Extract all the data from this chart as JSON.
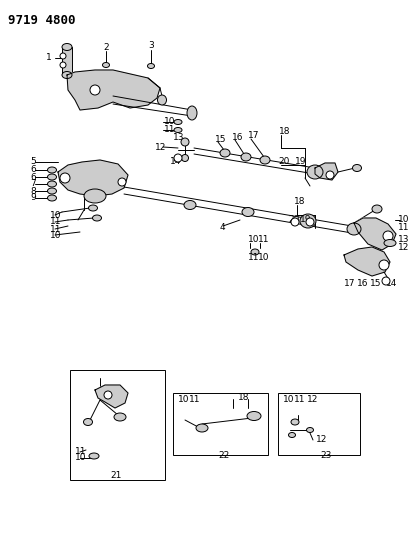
{
  "title": "9719 4800",
  "bg_color": "#ffffff",
  "line_color": "#000000",
  "title_fontsize": 9,
  "label_fontsize": 6.5,
  "fig_width": 4.11,
  "fig_height": 5.33,
  "dpi": 100
}
